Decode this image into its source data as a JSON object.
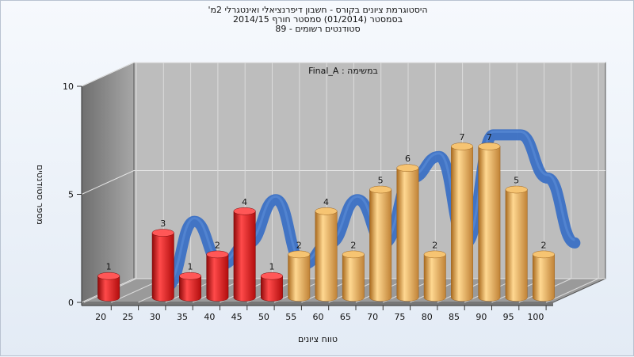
{
  "title_lines": [
    "היסטוגרמת ציונים בקורס - חשבון דיפרנציאלי ואינטגרלי 2מ'",
    "בסמסטר  (01/2014)  סמסטר חורף 2014/15",
    "סטודנטים רשומים - 89"
  ],
  "colors": {
    "low": "#e41a1a",
    "high": "#e9a646",
    "curve": "#3b70c4",
    "wall": "#8c8c8c",
    "floor": "#9a9a9a",
    "back": "#bdbdbd"
  },
  "chart_data": {
    "type": "bar",
    "title": "",
    "annotation": "Final_A : במשימה",
    "xlabel": "טווח ציונים",
    "ylabel": "מספר סטודנטים",
    "x_tick_labels": [
      "20",
      "25",
      "30",
      "35",
      "40",
      "45",
      "50",
      "55",
      "60",
      "65",
      "70",
      "75",
      "80",
      "85",
      "90",
      "95",
      "100"
    ],
    "y_tick_labels": [
      "0",
      "5",
      "10"
    ],
    "ylim": [
      0,
      10
    ],
    "grid": true,
    "categories": [
      "20",
      "25",
      "30",
      "35",
      "40",
      "45",
      "50",
      "55",
      "60",
      "65",
      "70",
      "75",
      "80",
      "85",
      "90",
      "95",
      "100"
    ],
    "values": [
      1,
      0,
      3,
      1,
      2,
      4,
      1,
      2,
      4,
      2,
      5,
      6,
      2,
      7,
      7,
      5,
      2
    ],
    "value_labels": [
      "1",
      "",
      "3",
      "1",
      "2",
      "4",
      "1",
      "2",
      "4",
      "2",
      "5",
      "6",
      "2",
      "7",
      "7",
      "5",
      "2"
    ],
    "fail_threshold_index": 7
  }
}
